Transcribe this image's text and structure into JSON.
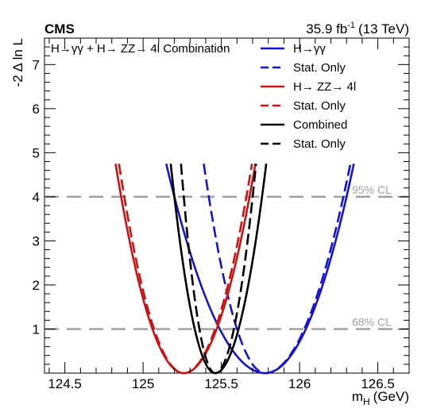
{
  "header": {
    "experiment": "CMS",
    "luminosity": "35.9 fb",
    "luminosity_exponent": "-1",
    "energy": "(13 TeV)"
  },
  "chart_data": {
    "type": "line",
    "title": "H→γγ + H→ ZZ→ 4l Combination",
    "xlabel_main": "m",
    "xlabel_sub": "H",
    "xlabel_unit": "(GeV)",
    "ylabel": "-2 Δ ln L",
    "xlim": [
      124.37,
      126.7
    ],
    "ylim": [
      0,
      7.6
    ],
    "x_ticks": [
      124.5,
      125,
      125.5,
      126,
      126.5
    ],
    "x_tick_labels": [
      "124.5",
      "125",
      "125.5",
      "126",
      "126.5"
    ],
    "y_ticks": [
      1,
      2,
      3,
      4,
      5,
      6,
      7
    ],
    "y_tick_labels": [
      "1",
      "2",
      "3",
      "4",
      "5",
      "6",
      "7"
    ],
    "y_max_drawn": 4.75,
    "grid": false,
    "legend_position": "top-right",
    "reference_lines": [
      {
        "y": 4,
        "label": "95% CL",
        "color": "#a0a0a0"
      },
      {
        "y": 1,
        "label": "68% CL",
        "color": "#a0a0a0"
      }
    ],
    "series": [
      {
        "name": "H→γγ",
        "color": "#1414d2",
        "dashed": false,
        "best_fit": 125.78,
        "sigma_left": 0.29,
        "sigma_right": 0.26
      },
      {
        "name": "Stat. Only",
        "color": "#1414d2",
        "dashed": true,
        "best_fit": 125.78,
        "sigma_left": 0.18,
        "sigma_right": 0.25
      },
      {
        "name": "H→ ZZ→ 4l",
        "color": "#c81414",
        "dashed": false,
        "best_fit": 125.26,
        "sigma_left": 0.2,
        "sigma_right": 0.21
      },
      {
        "name": "Stat. Only",
        "color": "#c81414",
        "dashed": true,
        "best_fit": 125.26,
        "sigma_left": 0.19,
        "sigma_right": 0.2
      },
      {
        "name": "Combined",
        "color": "#000000",
        "dashed": false,
        "best_fit": 125.46,
        "sigma_left": 0.13,
        "sigma_right": 0.15
      },
      {
        "name": "Stat. Only",
        "color": "#000000",
        "dashed": true,
        "best_fit": 125.46,
        "sigma_left": 0.1,
        "sigma_right": 0.12
      }
    ]
  }
}
